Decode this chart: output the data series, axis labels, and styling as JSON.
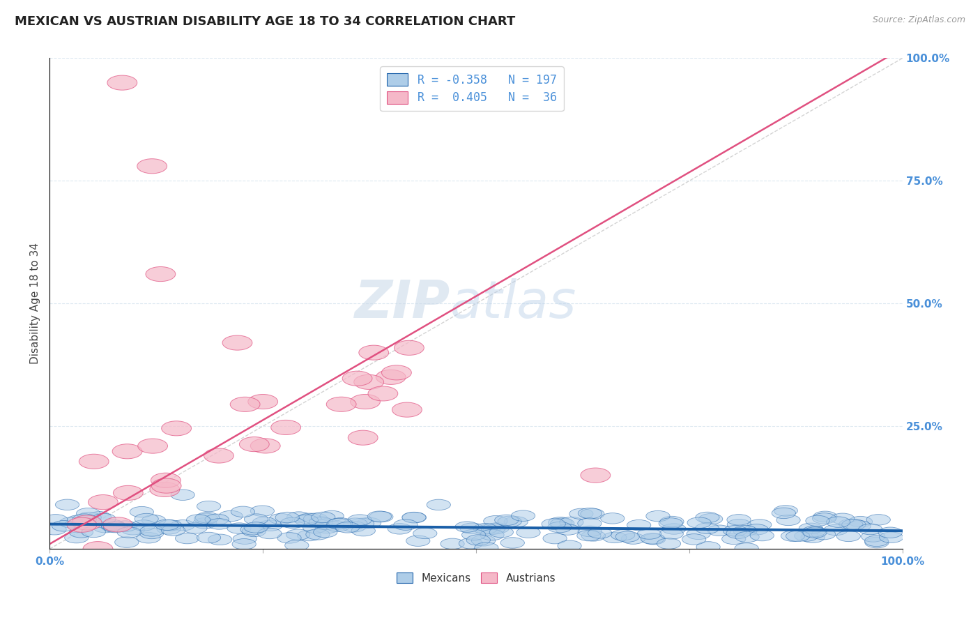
{
  "title": "MEXICAN VS AUSTRIAN DISABILITY AGE 18 TO 34 CORRELATION CHART",
  "source": "Source: ZipAtlas.com",
  "ylabel": "Disability Age 18 to 34",
  "xlabel": "",
  "legend_labels": [
    "Mexicans",
    "Austrians"
  ],
  "blue_R": -0.358,
  "blue_N": 197,
  "pink_R": 0.405,
  "pink_N": 36,
  "blue_color": "#aecde8",
  "pink_color": "#f5b8c8",
  "blue_line_color": "#1a5fa8",
  "pink_line_color": "#e05080",
  "ref_line_color": "#cccccc",
  "watermark_zip": "ZIP",
  "watermark_atlas": "atlas",
  "background_color": "#ffffff",
  "grid_color": "#dce8f0",
  "right_axis_color": "#4a90d9",
  "title_fontsize": 13,
  "axis_label_fontsize": 11,
  "tick_fontsize": 11,
  "xlim": [
    0.0,
    1.0
  ],
  "ylim": [
    0.0,
    1.0
  ],
  "blue_scatter_seed": 42,
  "pink_scatter_seed": 123
}
